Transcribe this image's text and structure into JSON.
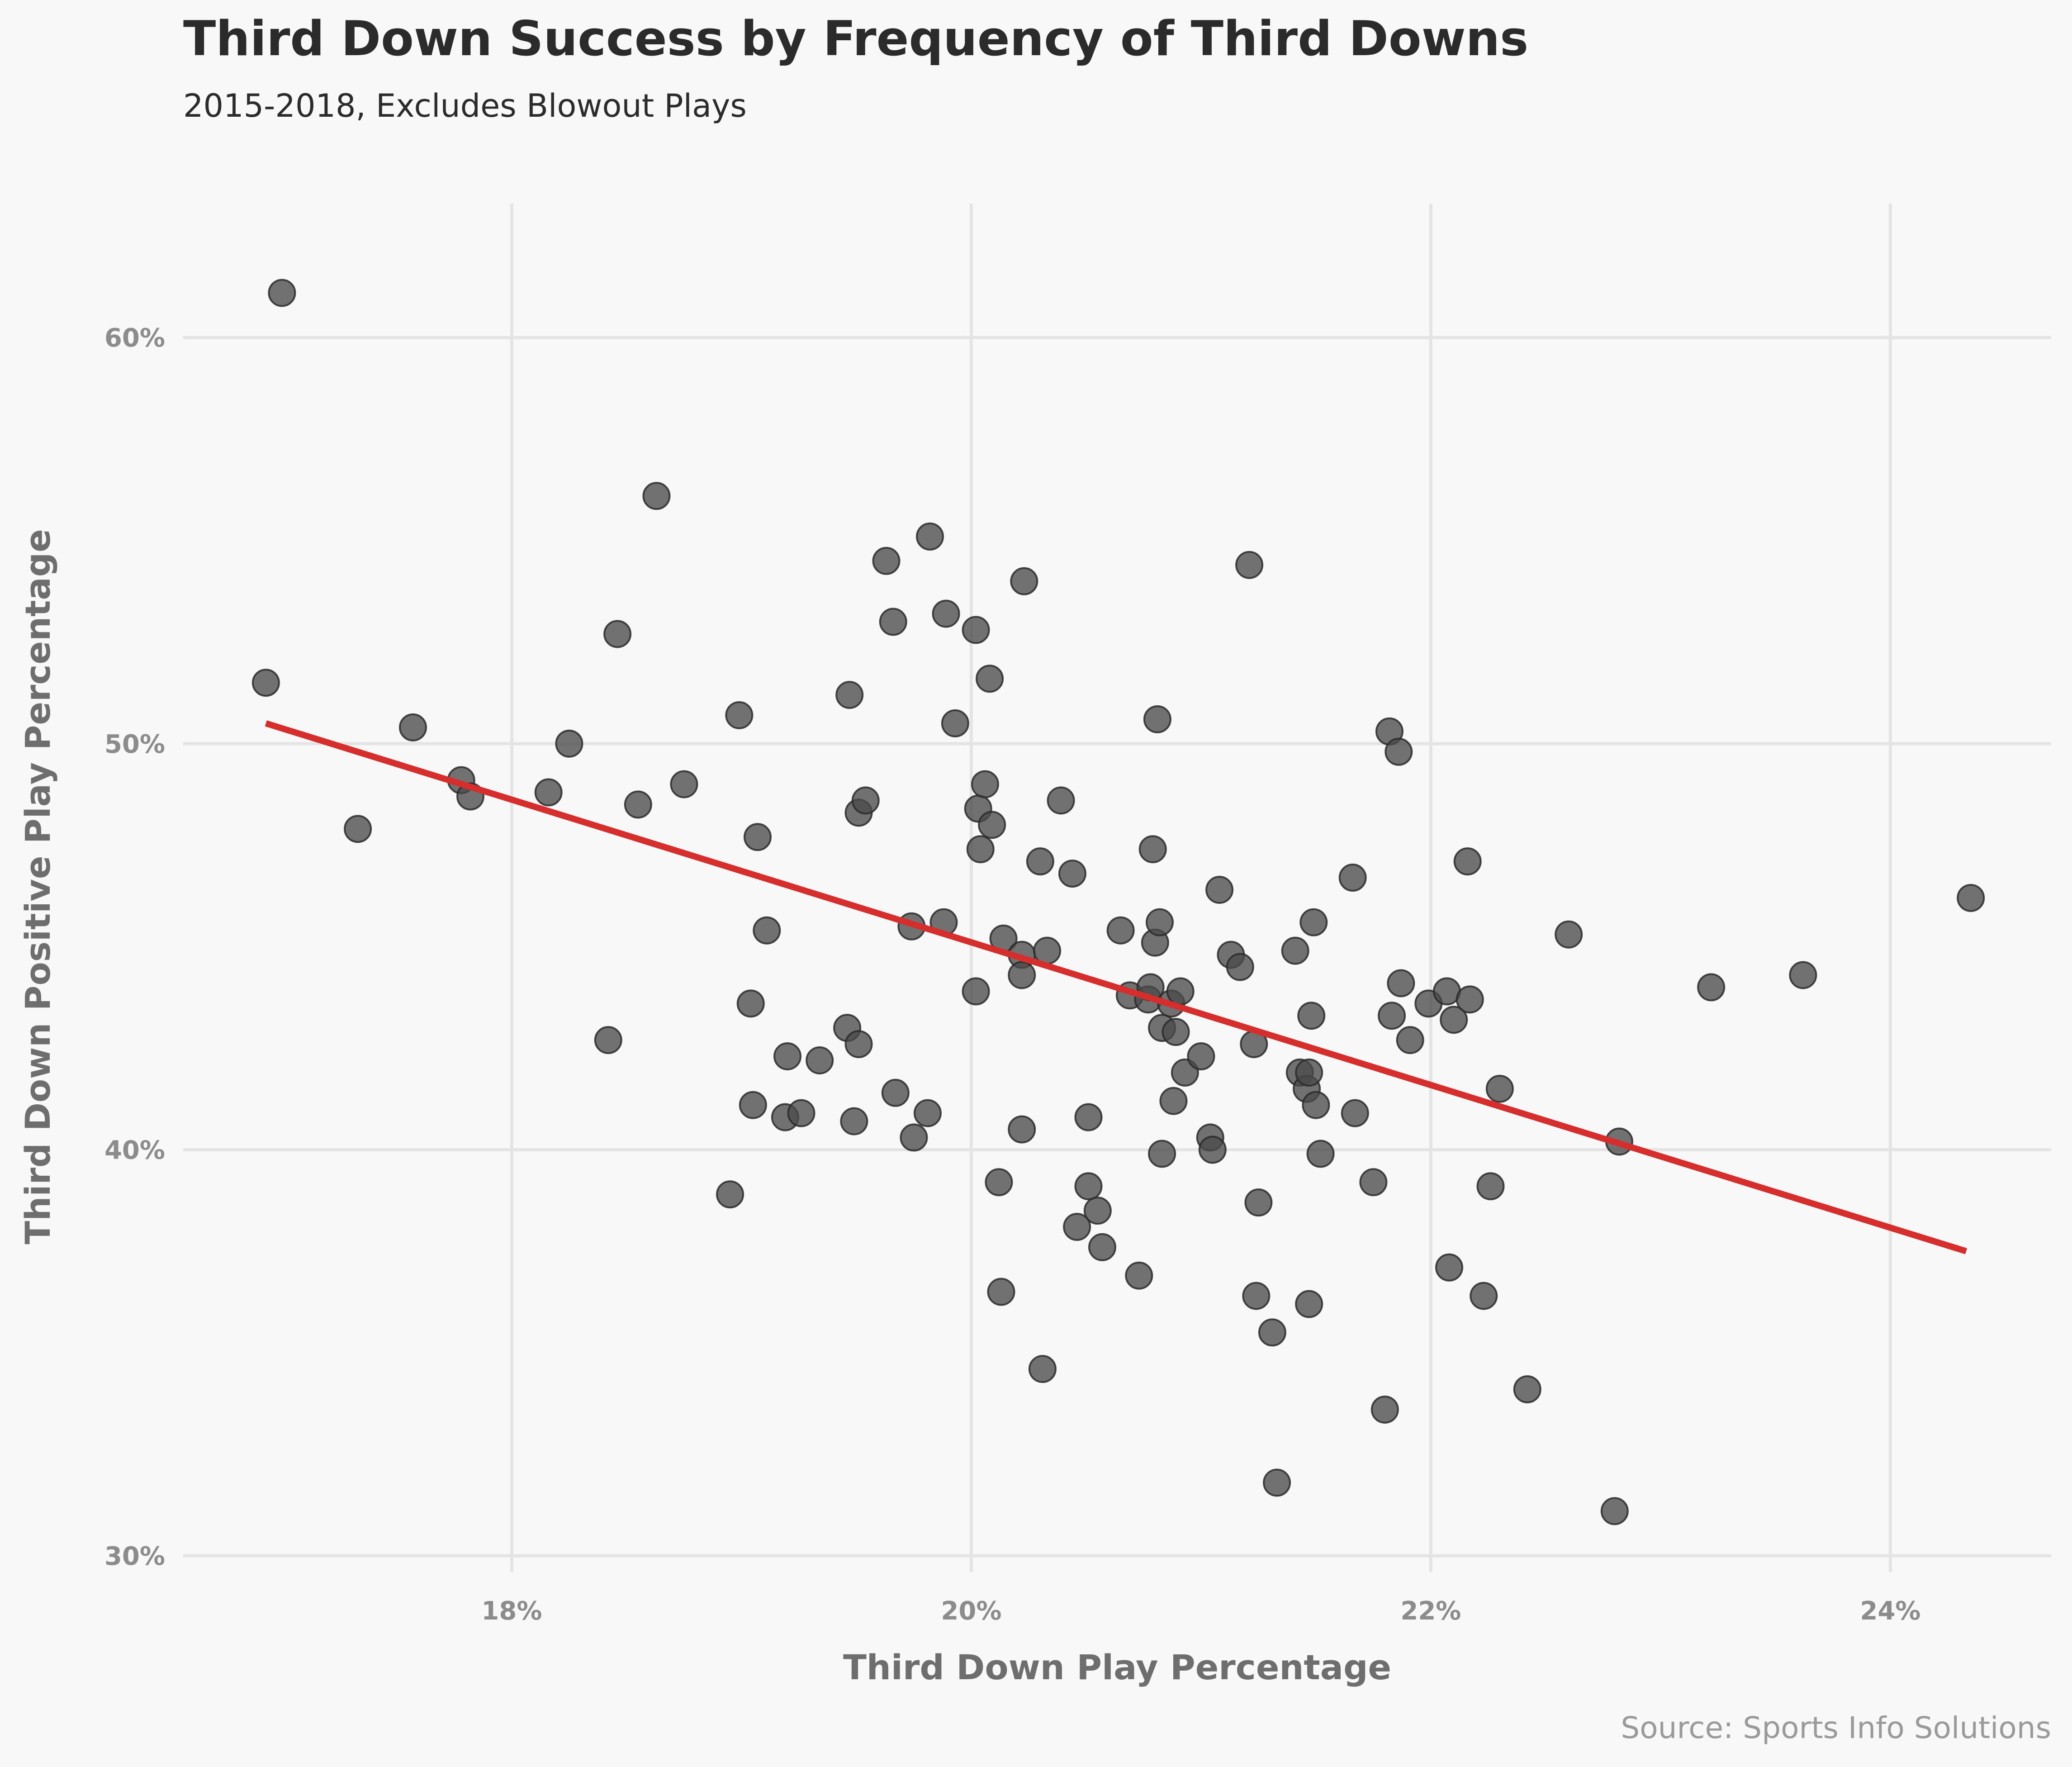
{
  "chart_data": {
    "type": "scatter",
    "title": "Third Down Success by Frequency of Third Downs",
    "subtitle": "2015-2018, Excludes Blowout Plays",
    "xlabel": "Third Down Play Percentage",
    "ylabel": "Third Down Positive Play Percentage",
    "caption": "Source: Sports Info Solutions",
    "xlim": [
      16.57,
      24.7
    ],
    "ylim": [
      29.6,
      63.3
    ],
    "x_ticks": [
      {
        "value": 18,
        "label": "18%"
      },
      {
        "value": 20,
        "label": "20%"
      },
      {
        "value": 22,
        "label": "22%"
      },
      {
        "value": 24,
        "label": "24%"
      }
    ],
    "y_ticks": [
      {
        "value": 30,
        "label": "30%"
      },
      {
        "value": 40,
        "label": "40%"
      },
      {
        "value": 50,
        "label": "50%"
      },
      {
        "value": 60,
        "label": "60%"
      }
    ],
    "grid": true,
    "colors": {
      "points": "#4a4a4a",
      "trend": "#d62d2d",
      "background": "#f8f8f8"
    },
    "trend_line": {
      "x": [
        16.93,
        24.33
      ],
      "y": [
        50.5,
        37.5
      ]
    },
    "points": [
      {
        "x": 17.0,
        "y": 61.1
      },
      {
        "x": 16.93,
        "y": 51.5
      },
      {
        "x": 17.33,
        "y": 47.9
      },
      {
        "x": 17.57,
        "y": 50.4
      },
      {
        "x": 17.78,
        "y": 49.1
      },
      {
        "x": 17.82,
        "y": 48.7
      },
      {
        "x": 18.16,
        "y": 48.8
      },
      {
        "x": 18.25,
        "y": 50.0
      },
      {
        "x": 18.42,
        "y": 42.7
      },
      {
        "x": 18.46,
        "y": 52.7
      },
      {
        "x": 18.55,
        "y": 48.5
      },
      {
        "x": 18.63,
        "y": 56.1
      },
      {
        "x": 18.75,
        "y": 49.0
      },
      {
        "x": 18.95,
        "y": 38.9
      },
      {
        "x": 18.99,
        "y": 50.7
      },
      {
        "x": 19.04,
        "y": 43.6
      },
      {
        "x": 19.05,
        "y": 41.1
      },
      {
        "x": 19.07,
        "y": 47.7
      },
      {
        "x": 19.11,
        "y": 45.4
      },
      {
        "x": 19.19,
        "y": 40.8
      },
      {
        "x": 19.2,
        "y": 42.3
      },
      {
        "x": 19.26,
        "y": 40.9
      },
      {
        "x": 19.34,
        "y": 42.2
      },
      {
        "x": 19.46,
        "y": 43.0
      },
      {
        "x": 19.47,
        "y": 51.2
      },
      {
        "x": 19.49,
        "y": 40.7
      },
      {
        "x": 19.51,
        "y": 48.3
      },
      {
        "x": 19.51,
        "y": 42.6
      },
      {
        "x": 19.54,
        "y": 48.6
      },
      {
        "x": 19.63,
        "y": 54.5
      },
      {
        "x": 19.66,
        "y": 53.0
      },
      {
        "x": 19.67,
        "y": 41.4
      },
      {
        "x": 19.74,
        "y": 45.5
      },
      {
        "x": 19.75,
        "y": 40.3
      },
      {
        "x": 19.81,
        "y": 40.9
      },
      {
        "x": 19.82,
        "y": 55.1
      },
      {
        "x": 19.88,
        "y": 45.6
      },
      {
        "x": 19.89,
        "y": 53.2
      },
      {
        "x": 19.93,
        "y": 50.5
      },
      {
        "x": 20.02,
        "y": 43.9
      },
      {
        "x": 20.02,
        "y": 52.8
      },
      {
        "x": 20.03,
        "y": 48.4
      },
      {
        "x": 20.04,
        "y": 47.4
      },
      {
        "x": 20.06,
        "y": 49.0
      },
      {
        "x": 20.08,
        "y": 51.6
      },
      {
        "x": 20.09,
        "y": 48.0
      },
      {
        "x": 20.12,
        "y": 39.2
      },
      {
        "x": 20.13,
        "y": 36.5
      },
      {
        "x": 20.14,
        "y": 45.2
      },
      {
        "x": 20.22,
        "y": 44.8
      },
      {
        "x": 20.22,
        "y": 44.3
      },
      {
        "x": 20.22,
        "y": 40.5
      },
      {
        "x": 20.23,
        "y": 54.0
      },
      {
        "x": 20.3,
        "y": 47.1
      },
      {
        "x": 20.31,
        "y": 34.6
      },
      {
        "x": 20.33,
        "y": 44.9
      },
      {
        "x": 20.39,
        "y": 48.6
      },
      {
        "x": 20.44,
        "y": 46.8
      },
      {
        "x": 20.46,
        "y": 38.1
      },
      {
        "x": 20.51,
        "y": 40.8
      },
      {
        "x": 20.51,
        "y": 39.1
      },
      {
        "x": 20.55,
        "y": 38.5
      },
      {
        "x": 20.57,
        "y": 37.6
      },
      {
        "x": 20.65,
        "y": 45.4
      },
      {
        "x": 20.69,
        "y": 43.8
      },
      {
        "x": 20.73,
        "y": 36.9
      },
      {
        "x": 20.77,
        "y": 43.7
      },
      {
        "x": 20.78,
        "y": 44.0
      },
      {
        "x": 20.79,
        "y": 47.4
      },
      {
        "x": 20.8,
        "y": 45.1
      },
      {
        "x": 20.81,
        "y": 50.6
      },
      {
        "x": 20.82,
        "y": 45.6
      },
      {
        "x": 20.83,
        "y": 43.0
      },
      {
        "x": 20.83,
        "y": 39.9
      },
      {
        "x": 20.87,
        "y": 43.6
      },
      {
        "x": 20.88,
        "y": 41.2
      },
      {
        "x": 20.89,
        "y": 42.9
      },
      {
        "x": 20.91,
        "y": 43.9
      },
      {
        "x": 20.93,
        "y": 41.9
      },
      {
        "x": 21.0,
        "y": 42.3
      },
      {
        "x": 21.04,
        "y": 40.3
      },
      {
        "x": 21.05,
        "y": 40.0
      },
      {
        "x": 21.08,
        "y": 46.4
      },
      {
        "x": 21.13,
        "y": 44.8
      },
      {
        "x": 21.17,
        "y": 44.5
      },
      {
        "x": 21.21,
        "y": 54.4
      },
      {
        "x": 21.23,
        "y": 42.6
      },
      {
        "x": 21.24,
        "y": 36.4
      },
      {
        "x": 21.25,
        "y": 38.7
      },
      {
        "x": 21.31,
        "y": 35.5
      },
      {
        "x": 21.33,
        "y": 31.8
      },
      {
        "x": 21.41,
        "y": 44.9
      },
      {
        "x": 21.43,
        "y": 41.9
      },
      {
        "x": 21.46,
        "y": 41.5
      },
      {
        "x": 21.47,
        "y": 41.9
      },
      {
        "x": 21.47,
        "y": 36.2
      },
      {
        "x": 21.48,
        "y": 43.3
      },
      {
        "x": 21.49,
        "y": 45.6
      },
      {
        "x": 21.5,
        "y": 41.1
      },
      {
        "x": 21.52,
        "y": 39.9
      },
      {
        "x": 21.66,
        "y": 46.7
      },
      {
        "x": 21.67,
        "y": 40.9
      },
      {
        "x": 21.75,
        "y": 39.2
      },
      {
        "x": 21.8,
        "y": 33.6
      },
      {
        "x": 21.82,
        "y": 50.3
      },
      {
        "x": 21.83,
        "y": 43.3
      },
      {
        "x": 21.86,
        "y": 49.8
      },
      {
        "x": 21.87,
        "y": 44.1
      },
      {
        "x": 21.91,
        "y": 42.7
      },
      {
        "x": 21.99,
        "y": 43.6
      },
      {
        "x": 22.07,
        "y": 43.9
      },
      {
        "x": 22.08,
        "y": 37.1
      },
      {
        "x": 22.1,
        "y": 43.2
      },
      {
        "x": 22.16,
        "y": 47.1
      },
      {
        "x": 22.17,
        "y": 43.7
      },
      {
        "x": 22.23,
        "y": 36.4
      },
      {
        "x": 22.26,
        "y": 39.1
      },
      {
        "x": 22.3,
        "y": 41.5
      },
      {
        "x": 22.42,
        "y": 34.1
      },
      {
        "x": 22.6,
        "y": 45.3
      },
      {
        "x": 22.8,
        "y": 31.1
      },
      {
        "x": 22.82,
        "y": 40.2
      },
      {
        "x": 23.22,
        "y": 44.0
      },
      {
        "x": 23.62,
        "y": 44.3
      },
      {
        "x": 24.35,
        "y": 46.2
      }
    ]
  }
}
